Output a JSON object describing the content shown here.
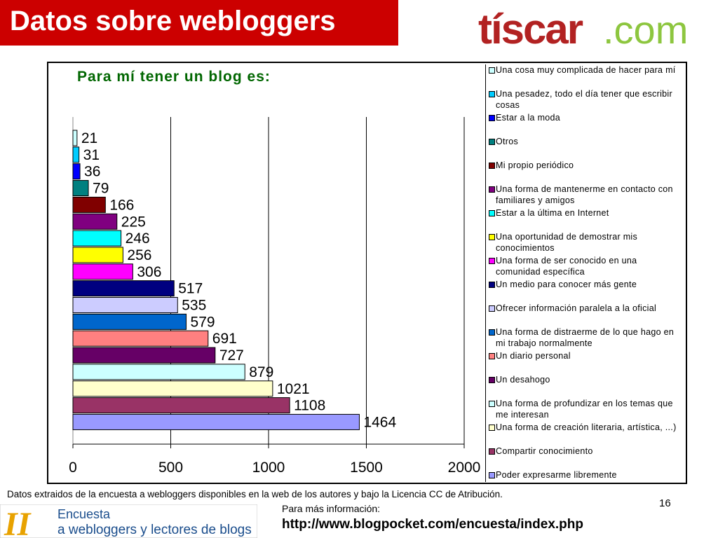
{
  "header": {
    "title": "Datos sobre webloggers",
    "logo_text_1": "tíscar",
    "logo_text_2": ".com"
  },
  "colors": {
    "title_bar": "#cc0000",
    "logo_red": "#b22222",
    "logo_green": "#8dc63f",
    "chart_title": "#006600"
  },
  "chart_data": {
    "type": "bar",
    "orientation": "horizontal",
    "title": "Para mí tener un blog es:",
    "xlim": [
      0,
      2000
    ],
    "xticks": [
      "0",
      "500",
      "1000",
      "1500",
      "2000"
    ],
    "grid": "vertical major gridlines",
    "legend": "right",
    "categories": [
      "Una cosa muy complicada de hacer para mí",
      "Una pesadez, todo el día tener que escribir cosas",
      "Estar a la moda",
      "Otros",
      "Mi propio periódico",
      "Una forma de mantenerme en contacto con familiares y amigos",
      "Estar a la última en Internet",
      "Una oportunidad de demostrar mis conocimientos",
      "Una forma de ser conocido en una comunidad específica",
      "Un medio para conocer más gente",
      "Ofrecer información paralela a la oficial",
      "Una forma de distraerme de lo que hago en mi trabajo normalmente",
      "Un diario personal",
      "Un desahogo",
      "Una forma de profundizar en los temas que me interesan",
      "Una forma de creación literaria, artística, ...)",
      "Compartir conocimiento",
      "Poder expresarme libremente"
    ],
    "values": [
      21,
      31,
      36,
      79,
      166,
      225,
      246,
      256,
      306,
      517,
      535,
      579,
      691,
      727,
      879,
      1021,
      1108,
      1464
    ],
    "colors": [
      "#ccffff",
      "#00ccff",
      "#0000ff",
      "#008080",
      "#800000",
      "#800080",
      "#00ffff",
      "#ffff00",
      "#ff00ff",
      "#000080",
      "#ccccff",
      "#0066cc",
      "#ff8080",
      "#660066",
      "#ccffff",
      "#ffffcc",
      "#993366",
      "#9999ff"
    ]
  },
  "footer": {
    "source": "Datos extraidos de la encuesta a webloggers disponibles en la web de los autores y bajo la Licencia CC  de Atribución.",
    "page": "16",
    "more_info": "Para más información:",
    "url": "http://www.blogpocket.com/encuesta/index.php",
    "survey_logo_line1": "Encuesta",
    "survey_logo_line2": "a webloggers y lectores de blogs",
    "survey_logo_mark": "II"
  }
}
